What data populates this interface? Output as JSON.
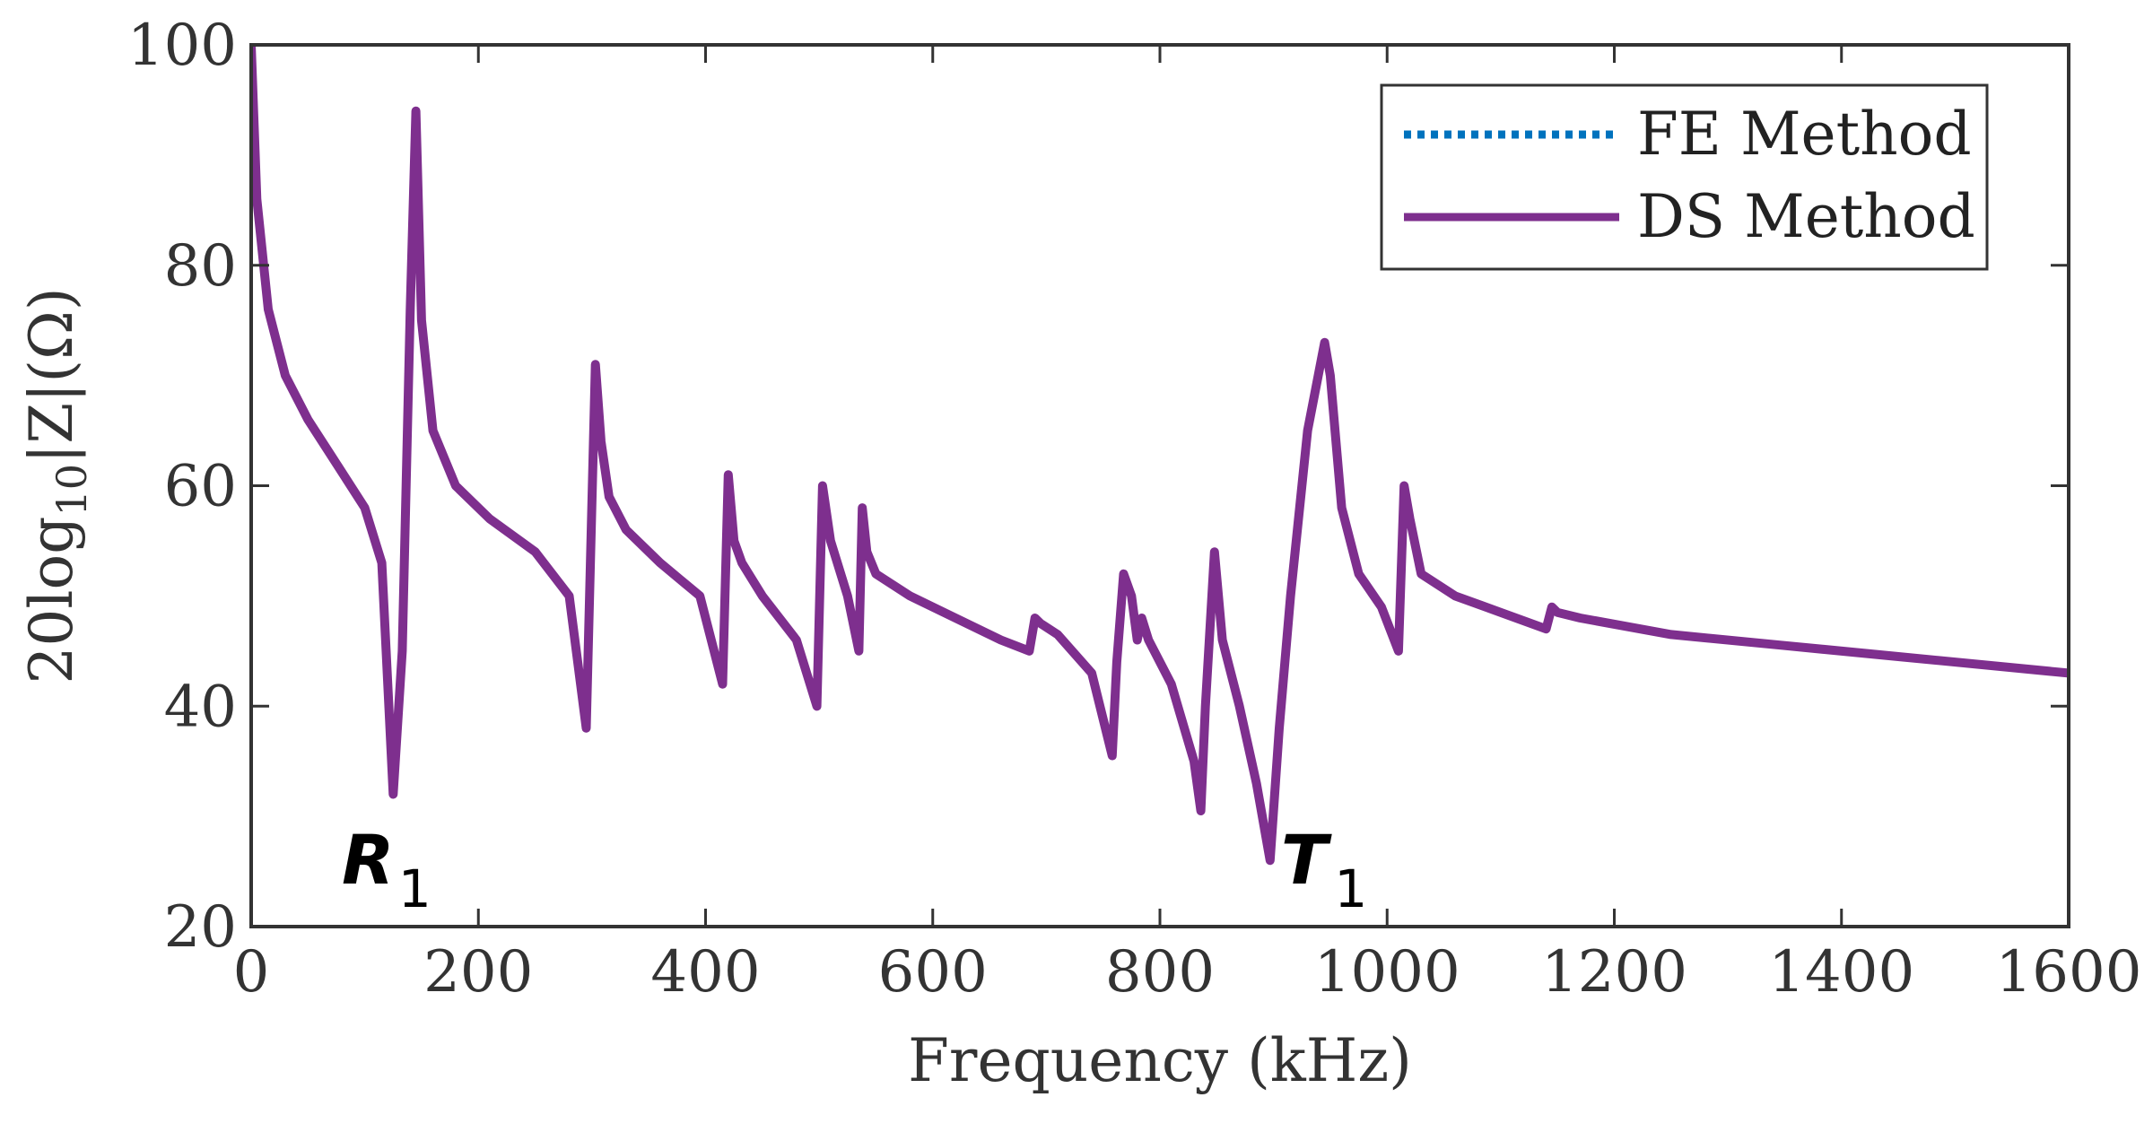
{
  "chart_data": {
    "type": "line",
    "title": "",
    "xlabel": "Frequency (kHz)",
    "ylabel": {
      "pre": "20log",
      "sub": "10",
      "post": "|Z|(Ω)"
    },
    "xlim": [
      0,
      1600
    ],
    "ylim": [
      20,
      100
    ],
    "xticks": [
      0,
      200,
      400,
      600,
      800,
      1000,
      1200,
      1400,
      1600
    ],
    "yticks": [
      20,
      40,
      60,
      80,
      100
    ],
    "xtick_labels": [
      "0",
      "200",
      "400",
      "600",
      "800",
      "1000",
      "1200",
      "1400",
      "1600"
    ],
    "ytick_labels": [
      "20",
      "40",
      "60",
      "80",
      "100"
    ],
    "legend_position": "top-right",
    "colors": {
      "fe": "#0072BD",
      "ds": "#7E2F8E",
      "axis": "#333333"
    },
    "series": [
      {
        "name": "FE Method",
        "style": "dotted",
        "x": [
          0,
          5,
          15,
          30,
          50,
          75,
          100,
          115,
          125,
          133,
          140,
          145,
          150,
          160,
          180,
          210,
          250,
          280,
          295,
          303,
          308,
          315,
          330,
          360,
          395,
          415,
          420,
          425,
          432,
          450,
          480,
          498,
          503,
          510,
          525,
          535,
          538,
          542,
          550,
          580,
          620,
          660,
          685,
          690,
          695,
          710,
          740,
          758,
          762,
          768,
          775,
          780,
          784,
          790,
          810,
          830,
          836,
          840,
          848,
          855,
          870,
          885,
          897,
          905,
          915,
          930,
          945,
          950,
          960,
          975,
          995,
          1010,
          1015,
          1020,
          1030,
          1060,
          1100,
          1140,
          1145,
          1150,
          1170,
          1250,
          1350,
          1450,
          1600
        ],
        "y": [
          100,
          86,
          76,
          70,
          66,
          62,
          58,
          53,
          32,
          45,
          76,
          94,
          75,
          65,
          60,
          57,
          54,
          50,
          38,
          71,
          64,
          59,
          56,
          53,
          50,
          42,
          61,
          55,
          53,
          50,
          46,
          40,
          60,
          55,
          50,
          45,
          58,
          54,
          52,
          50,
          48,
          46,
          45,
          48,
          47.5,
          46.5,
          43,
          35.5,
          44,
          52,
          50,
          46,
          48,
          46,
          42,
          35,
          30.5,
          40,
          54,
          46,
          40,
          33,
          26,
          38,
          50,
          65,
          73,
          70,
          58,
          52,
          49,
          45,
          60,
          57,
          52,
          50,
          48.5,
          47,
          49,
          48.5,
          48,
          46.5,
          45.5,
          44.5,
          43
        ]
      },
      {
        "name": "DS Method",
        "style": "solid",
        "x": [
          0,
          5,
          15,
          30,
          50,
          75,
          100,
          115,
          125,
          133,
          140,
          145,
          150,
          160,
          180,
          210,
          250,
          280,
          295,
          303,
          308,
          315,
          330,
          360,
          395,
          415,
          420,
          425,
          432,
          450,
          480,
          498,
          503,
          510,
          525,
          535,
          538,
          542,
          550,
          580,
          620,
          660,
          685,
          690,
          695,
          710,
          740,
          758,
          762,
          768,
          775,
          780,
          784,
          790,
          810,
          830,
          836,
          840,
          848,
          855,
          870,
          885,
          897,
          905,
          915,
          930,
          945,
          950,
          960,
          975,
          995,
          1010,
          1015,
          1020,
          1030,
          1060,
          1100,
          1140,
          1145,
          1150,
          1170,
          1250,
          1350,
          1450,
          1600
        ],
        "y": [
          100,
          86,
          76,
          70,
          66,
          62,
          58,
          53,
          32,
          45,
          76,
          94,
          75,
          65,
          60,
          57,
          54,
          50,
          38,
          71,
          64,
          59,
          56,
          53,
          50,
          42,
          61,
          55,
          53,
          50,
          46,
          40,
          60,
          55,
          50,
          45,
          58,
          54,
          52,
          50,
          48,
          46,
          45,
          48,
          47.5,
          46.5,
          43,
          35.5,
          44,
          52,
          50,
          46,
          48,
          46,
          42,
          35,
          30.5,
          40,
          54,
          46,
          40,
          33,
          26,
          38,
          50,
          65,
          73,
          70,
          58,
          52,
          49,
          45,
          60,
          57,
          52,
          50,
          48.5,
          47,
          49,
          48.5,
          48,
          46.5,
          45.5,
          44.5,
          43
        ]
      }
    ],
    "annotations": [
      {
        "name": "R",
        "sub": "1",
        "x": 125,
        "y": 32
      },
      {
        "name": "T",
        "sub": "1",
        "x": 897,
        "y": 26
      }
    ]
  }
}
